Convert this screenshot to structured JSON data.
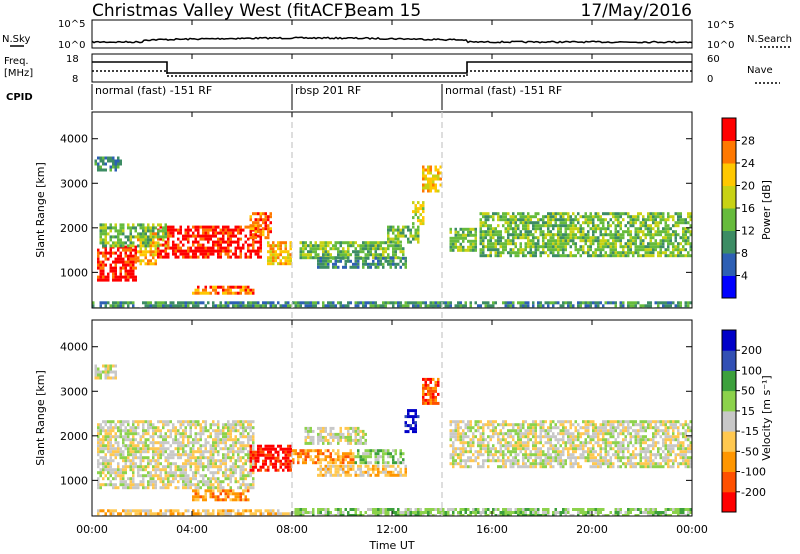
{
  "header": {
    "title": "Christmas Valley West (fitACF)",
    "beam": "Beam 15",
    "date": "17/May/2016"
  },
  "top_panels": {
    "nsky_label": "N.Sky",
    "nsearch_label": "N.Search",
    "freq_label": "Freq.",
    "freq_unit": "[MHz]",
    "nave_label": "Nave",
    "cpid_label": "CPID",
    "nsky_ticks": [
      "10^5",
      "10^0"
    ],
    "nsearch_ticks": [
      "10^5",
      "10^0"
    ],
    "freq_ticks": [
      "18",
      "8"
    ],
    "nave_ticks": [
      "60",
      "0"
    ],
    "cpid_modes": [
      {
        "label": "normal (fast) -151 RF",
        "start_hour": 0,
        "end_hour": 8
      },
      {
        "label": "rbsp 201 RF",
        "start_hour": 8,
        "end_hour": 14
      },
      {
        "label": "normal (fast) -151 RF",
        "start_hour": 14,
        "end_hour": 24
      }
    ]
  },
  "colors": {
    "power": [
      "#0000ff",
      "#2d5fb4",
      "#3c8c64",
      "#66bb3c",
      "#c8d214",
      "#ffc800",
      "#ff7800",
      "#ff0000"
    ],
    "velocity": [
      "#ff0000",
      "#ff5000",
      "#ff9600",
      "#ffc850",
      "#c8c8c8",
      "#8cd24b",
      "#3ca03c",
      "#3250b4",
      "#0000c8"
    ]
  },
  "chart_data": [
    {
      "type": "heatmap",
      "name": "power",
      "ylabel": "Slant Range [km]",
      "colorbar_label": "Power [dB]",
      "colorbar_ticks": [
        "4",
        "8",
        "12",
        "16",
        "20",
        "24",
        "28"
      ],
      "ylim": [
        200,
        4600
      ],
      "yticks": [
        "1000",
        "2000",
        "3000",
        "4000"
      ],
      "regions": [
        {
          "t0": 0.2,
          "t1": 1.8,
          "r0": 850,
          "r1": 1600,
          "level": 7
        },
        {
          "t0": 1.8,
          "t1": 2.6,
          "r0": 1200,
          "r1": 1900,
          "level": 5
        },
        {
          "t0": 2.6,
          "t1": 6.8,
          "r0": 1350,
          "r1": 2050,
          "level": 7
        },
        {
          "t0": 6.3,
          "t1": 7.2,
          "r0": 1800,
          "r1": 2350,
          "level": 6
        },
        {
          "t0": 7.0,
          "t1": 8.0,
          "r0": 1200,
          "r1": 1700,
          "level": 5
        },
        {
          "t0": 0.3,
          "t1": 3.0,
          "r0": 1600,
          "r1": 2100,
          "level": 3
        },
        {
          "t0": 0.1,
          "t1": 1.2,
          "r0": 3300,
          "r1": 3600,
          "level": 2
        },
        {
          "t0": 8.3,
          "t1": 12.5,
          "r0": 1350,
          "r1": 1700,
          "level": 3
        },
        {
          "t0": 9.0,
          "t1": 12.6,
          "r0": 1100,
          "r1": 1350,
          "level": 2
        },
        {
          "t0": 11.8,
          "t1": 13.1,
          "r0": 1700,
          "r1": 2050,
          "level": 3
        },
        {
          "t0": 13.2,
          "t1": 13.9,
          "r0": 2800,
          "r1": 3400,
          "level": 5
        },
        {
          "t0": 12.8,
          "t1": 13.3,
          "r0": 2100,
          "r1": 2600,
          "level": 4
        },
        {
          "t0": 14.3,
          "t1": 15.3,
          "r0": 1500,
          "r1": 2000,
          "level": 3
        },
        {
          "t0": 15.5,
          "t1": 24.0,
          "r0": 1350,
          "r1": 2350,
          "level": 3
        },
        {
          "t0": 4.0,
          "t1": 6.5,
          "r0": 500,
          "r1": 700,
          "level": 6
        },
        {
          "t0": 0.0,
          "t1": 24.0,
          "r0": 200,
          "r1": 350,
          "level": 2
        }
      ]
    },
    {
      "type": "heatmap",
      "name": "velocity",
      "xlabel": "Time UT",
      "ylabel": "Slant Range [km]",
      "colorbar_label": "Velocity [m s⁻¹]",
      "colorbar_ticks": [
        "-200",
        "-100",
        "-50",
        "-15",
        "15",
        "50",
        "100",
        "200"
      ],
      "ylim": [
        200,
        4600
      ],
      "yticks": [
        "1000",
        "2000",
        "3000",
        "4000"
      ],
      "xticks": [
        "00:00",
        "04:00",
        "08:00",
        "12:00",
        "16:00",
        "20:00",
        "00:00"
      ],
      "xlim": [
        0,
        24
      ],
      "regions": [
        {
          "t0": 0.2,
          "t1": 6.5,
          "r0": 850,
          "r1": 2350,
          "level": 4
        },
        {
          "t0": 6.3,
          "t1": 8.0,
          "r0": 1200,
          "r1": 1800,
          "level": 0
        },
        {
          "t0": 8.0,
          "t1": 10.5,
          "r0": 1400,
          "r1": 1700,
          "level": 2
        },
        {
          "t0": 10.5,
          "t1": 12.5,
          "r0": 1400,
          "r1": 1700,
          "level": 5
        },
        {
          "t0": 9.0,
          "t1": 12.6,
          "r0": 1100,
          "r1": 1350,
          "level": 3
        },
        {
          "t0": 8.5,
          "t1": 11.0,
          "r0": 1800,
          "r1": 2200,
          "level": 4
        },
        {
          "t0": 13.2,
          "t1": 13.8,
          "r0": 2700,
          "r1": 3300,
          "level": 1
        },
        {
          "t0": 12.5,
          "t1": 13.1,
          "r0": 2100,
          "r1": 2600,
          "level": 8
        },
        {
          "t0": 14.3,
          "t1": 24.0,
          "r0": 1300,
          "r1": 2350,
          "level": 4
        },
        {
          "t0": 0.1,
          "t1": 1.0,
          "r0": 3300,
          "r1": 3600,
          "level": 4
        },
        {
          "t0": 4.0,
          "t1": 6.2,
          "r0": 550,
          "r1": 800,
          "level": 2
        },
        {
          "t0": 0.0,
          "t1": 8.0,
          "r0": 200,
          "r1": 350,
          "level": 3
        },
        {
          "t0": 8.0,
          "t1": 24.0,
          "r0": 200,
          "r1": 380,
          "level": 5
        }
      ]
    }
  ]
}
